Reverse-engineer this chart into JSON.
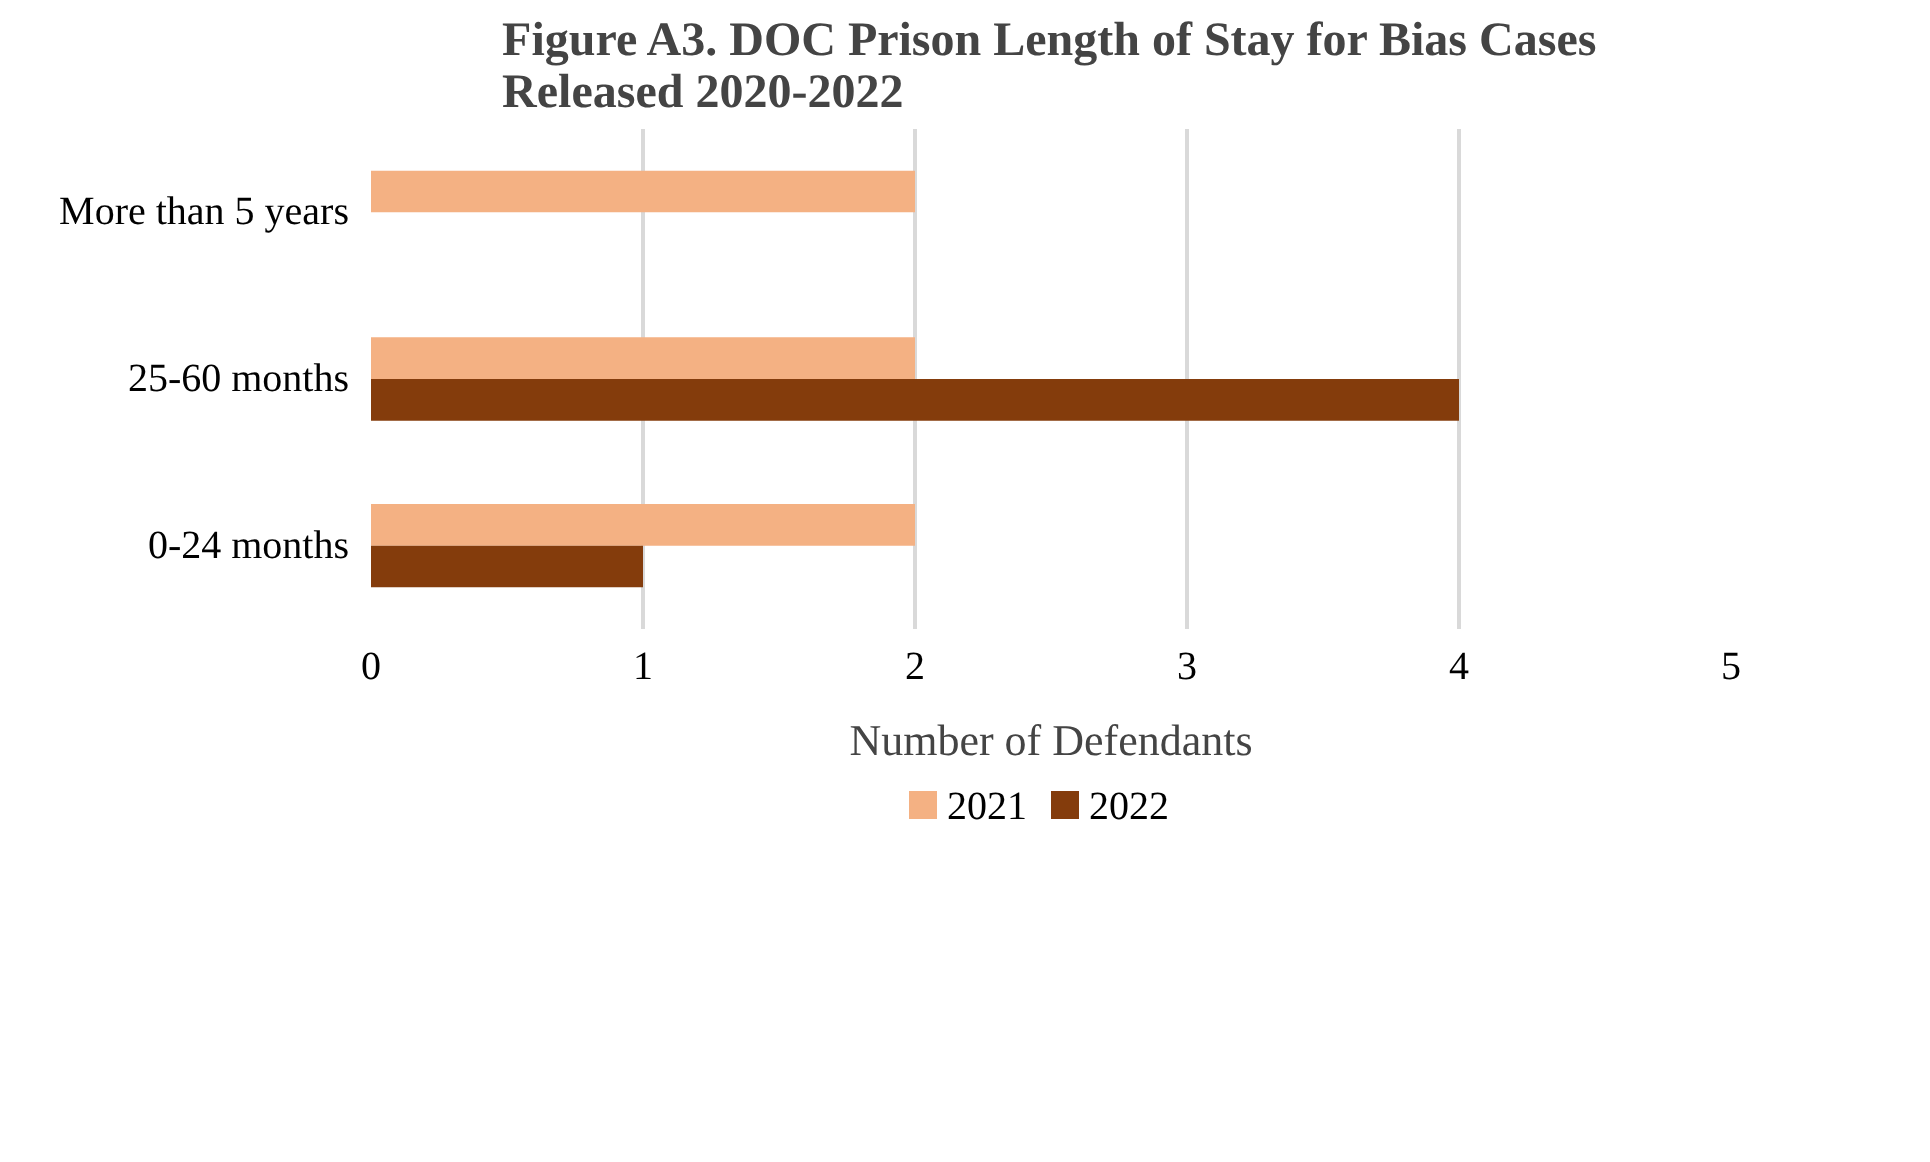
{
  "chart_data": {
    "type": "bar",
    "orientation": "horizontal",
    "title": "Figure A3. DOC Prison Length of Stay for Bias Cases Released 2020-2022",
    "xlabel": "Number of Defendants",
    "categories": [
      "More than 5 years",
      "25-60 months",
      "0-24 months"
    ],
    "series": [
      {
        "name": "2021",
        "color": "#f4b183",
        "values": [
          2,
          2,
          2
        ]
      },
      {
        "name": "2022",
        "color": "#843c0c",
        "values": [
          null,
          4,
          1
        ]
      }
    ],
    "xlim": [
      0,
      5
    ],
    "xticks": [
      0,
      1,
      2,
      3,
      4,
      5
    ],
    "grid": "x",
    "legend": "bottom"
  }
}
